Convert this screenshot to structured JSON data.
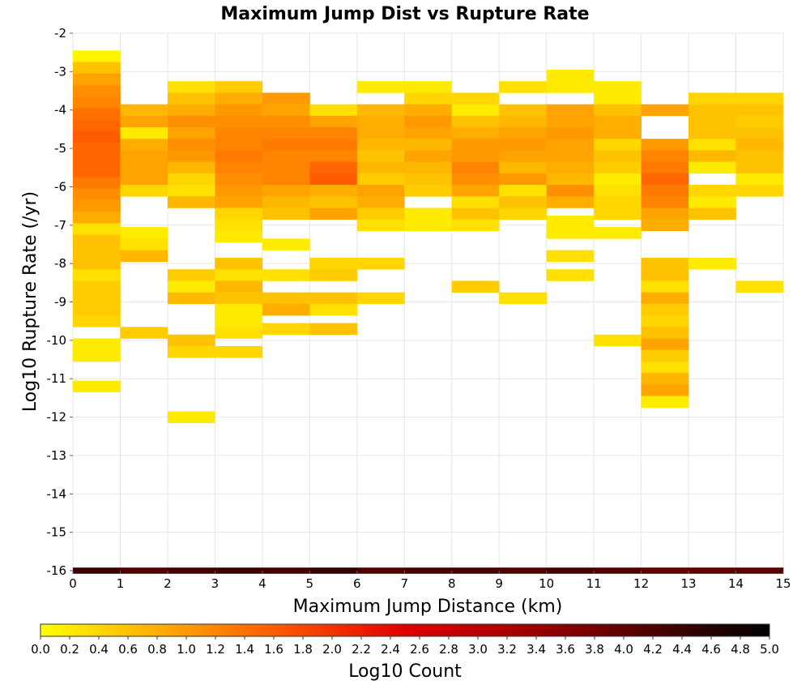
{
  "chart_data": {
    "type": "heatmap",
    "title": "Maximum Jump Dist vs Rupture Rate",
    "xlabel": "Maximum Jump Distance (km)",
    "ylabel": "Log10 Rupture Rate (/yr)",
    "colorbar_label": "Log10 Count",
    "xlim": [
      0,
      15
    ],
    "ylim": [
      -16,
      -2
    ],
    "x_ticks": [
      "0",
      "1",
      "2",
      "3",
      "4",
      "5",
      "6",
      "7",
      "8",
      "9",
      "10",
      "11",
      "12",
      "13",
      "14",
      "15"
    ],
    "y_ticks": [
      "-2",
      "-3",
      "-4",
      "-5",
      "-6",
      "-7",
      "-8",
      "-9",
      "-10",
      "-11",
      "-12",
      "-13",
      "-14",
      "-15",
      "-16"
    ],
    "colorbar_range": [
      0,
      5
    ],
    "colorbar_ticks": [
      "0.0",
      "0.2",
      "0.4",
      "0.6",
      "0.8",
      "1.0",
      "1.2",
      "1.4",
      "1.6",
      "1.8",
      "2.0",
      "2.2",
      "2.4",
      "2.6",
      "2.8",
      "3.0",
      "3.2",
      "3.4",
      "3.6",
      "3.8",
      "4.0",
      "4.2",
      "4.4",
      "4.6",
      "4.8",
      "5.0"
    ],
    "colorscale": [
      "#ffff00",
      "#ffaa00",
      "#ff5500",
      "#e00000",
      "#a00000",
      "#500000",
      "#000000"
    ],
    "grid": true,
    "bin_width_x": 1,
    "bin_height_y": 0.3,
    "cells": [
      {
        "x": 0,
        "y": -2.6,
        "v": 0.1
      },
      {
        "x": 0,
        "y": -2.9,
        "v": 0.6
      },
      {
        "x": 0,
        "y": -3.2,
        "v": 0.9
      },
      {
        "x": 0,
        "y": -3.5,
        "v": 1.1
      },
      {
        "x": 0,
        "y": -3.8,
        "v": 1.2
      },
      {
        "x": 0,
        "y": -4.1,
        "v": 1.4
      },
      {
        "x": 0,
        "y": -4.4,
        "v": 1.5
      },
      {
        "x": 0,
        "y": -4.7,
        "v": 1.6
      },
      {
        "x": 0,
        "y": -5.0,
        "v": 1.5
      },
      {
        "x": 0,
        "y": -5.3,
        "v": 1.5
      },
      {
        "x": 0,
        "y": -5.6,
        "v": 1.5
      },
      {
        "x": 0,
        "y": -5.9,
        "v": 1.3
      },
      {
        "x": 0,
        "y": -6.2,
        "v": 1.1
      },
      {
        "x": 0,
        "y": -6.5,
        "v": 1.0
      },
      {
        "x": 0,
        "y": -6.8,
        "v": 0.8
      },
      {
        "x": 0,
        "y": -7.1,
        "v": 0.3
      },
      {
        "x": 0,
        "y": -7.4,
        "v": 0.6
      },
      {
        "x": 0,
        "y": -7.7,
        "v": 0.6
      },
      {
        "x": 0,
        "y": -8.0,
        "v": 0.6
      },
      {
        "x": 0,
        "y": -8.3,
        "v": 0.3
      },
      {
        "x": 0,
        "y": -8.6,
        "v": 0.5
      },
      {
        "x": 0,
        "y": -8.9,
        "v": 0.5
      },
      {
        "x": 0,
        "y": -9.2,
        "v": 0.5
      },
      {
        "x": 0,
        "y": -9.5,
        "v": 0.4
      },
      {
        "x": 0,
        "y": -10.1,
        "v": 0.2
      },
      {
        "x": 0,
        "y": -10.4,
        "v": 0.2
      },
      {
        "x": 0,
        "y": -11.2,
        "v": 0.2
      },
      {
        "x": 1,
        "y": -4.0,
        "v": 0.7
      },
      {
        "x": 1,
        "y": -4.3,
        "v": 0.9
      },
      {
        "x": 1,
        "y": -4.6,
        "v": 0.2
      },
      {
        "x": 1,
        "y": -4.9,
        "v": 0.8
      },
      {
        "x": 1,
        "y": -5.2,
        "v": 0.9
      },
      {
        "x": 1,
        "y": -5.5,
        "v": 0.9
      },
      {
        "x": 1,
        "y": -5.8,
        "v": 0.9
      },
      {
        "x": 1,
        "y": -6.1,
        "v": 0.4
      },
      {
        "x": 1,
        "y": -7.2,
        "v": 0.2
      },
      {
        "x": 1,
        "y": -7.5,
        "v": 0.3
      },
      {
        "x": 1,
        "y": -7.8,
        "v": 0.7
      },
      {
        "x": 1,
        "y": -9.8,
        "v": 0.5
      },
      {
        "x": 2,
        "y": -3.4,
        "v": 0.3
      },
      {
        "x": 2,
        "y": -3.7,
        "v": 0.6
      },
      {
        "x": 2,
        "y": -4.0,
        "v": 0.8
      },
      {
        "x": 2,
        "y": -4.3,
        "v": 1.1
      },
      {
        "x": 2,
        "y": -4.6,
        "v": 0.9
      },
      {
        "x": 2,
        "y": -4.9,
        "v": 1.1
      },
      {
        "x": 2,
        "y": -5.2,
        "v": 1.0
      },
      {
        "x": 2,
        "y": -5.5,
        "v": 0.7
      },
      {
        "x": 2,
        "y": -5.8,
        "v": 0.4
      },
      {
        "x": 2,
        "y": -6.1,
        "v": 0.3
      },
      {
        "x": 2,
        "y": -6.4,
        "v": 0.7
      },
      {
        "x": 2,
        "y": -8.3,
        "v": 0.5
      },
      {
        "x": 2,
        "y": -8.6,
        "v": 0.2
      },
      {
        "x": 2,
        "y": -8.9,
        "v": 0.7
      },
      {
        "x": 2,
        "y": -10.0,
        "v": 0.6
      },
      {
        "x": 2,
        "y": -10.3,
        "v": 0.4
      },
      {
        "x": 2,
        "y": -12.0,
        "v": 0.2
      },
      {
        "x": 3,
        "y": -3.4,
        "v": 0.5
      },
      {
        "x": 3,
        "y": -3.7,
        "v": 0.8
      },
      {
        "x": 3,
        "y": -4.0,
        "v": 1.0
      },
      {
        "x": 3,
        "y": -4.3,
        "v": 1.1
      },
      {
        "x": 3,
        "y": -4.6,
        "v": 1.2
      },
      {
        "x": 3,
        "y": -4.9,
        "v": 1.2
      },
      {
        "x": 3,
        "y": -5.2,
        "v": 1.3
      },
      {
        "x": 3,
        "y": -5.5,
        "v": 1.2
      },
      {
        "x": 3,
        "y": -5.8,
        "v": 1.1
      },
      {
        "x": 3,
        "y": -6.1,
        "v": 1.0
      },
      {
        "x": 3,
        "y": -6.4,
        "v": 0.9
      },
      {
        "x": 3,
        "y": -6.7,
        "v": 0.4
      },
      {
        "x": 3,
        "y": -7.0,
        "v": 0.3
      },
      {
        "x": 3,
        "y": -7.3,
        "v": 0.2
      },
      {
        "x": 3,
        "y": -8.0,
        "v": 0.6
      },
      {
        "x": 3,
        "y": -8.3,
        "v": 0.3
      },
      {
        "x": 3,
        "y": -8.6,
        "v": 0.7
      },
      {
        "x": 3,
        "y": -8.9,
        "v": 0.6
      },
      {
        "x": 3,
        "y": -9.2,
        "v": 0.2
      },
      {
        "x": 3,
        "y": -9.5,
        "v": 0.2
      },
      {
        "x": 3,
        "y": -9.8,
        "v": 0.3
      },
      {
        "x": 3,
        "y": -10.3,
        "v": 0.4
      },
      {
        "x": 4,
        "y": -3.7,
        "v": 1.0
      },
      {
        "x": 4,
        "y": -4.0,
        "v": 0.9
      },
      {
        "x": 4,
        "y": -4.3,
        "v": 1.1
      },
      {
        "x": 4,
        "y": -4.6,
        "v": 1.2
      },
      {
        "x": 4,
        "y": -4.9,
        "v": 1.3
      },
      {
        "x": 4,
        "y": -5.2,
        "v": 1.2
      },
      {
        "x": 4,
        "y": -5.5,
        "v": 1.2
      },
      {
        "x": 4,
        "y": -5.8,
        "v": 1.2
      },
      {
        "x": 4,
        "y": -6.1,
        "v": 0.9
      },
      {
        "x": 4,
        "y": -6.4,
        "v": 0.7
      },
      {
        "x": 4,
        "y": -6.7,
        "v": 0.6
      },
      {
        "x": 4,
        "y": -7.5,
        "v": 0.2
      },
      {
        "x": 4,
        "y": -8.3,
        "v": 0.3
      },
      {
        "x": 4,
        "y": -8.9,
        "v": 0.6
      },
      {
        "x": 4,
        "y": -9.2,
        "v": 0.8
      },
      {
        "x": 4,
        "y": -9.7,
        "v": 0.4
      },
      {
        "x": 5,
        "y": -4.0,
        "v": 0.3
      },
      {
        "x": 5,
        "y": -4.3,
        "v": 0.9
      },
      {
        "x": 5,
        "y": -4.6,
        "v": 1.2
      },
      {
        "x": 5,
        "y": -4.9,
        "v": 1.3
      },
      {
        "x": 5,
        "y": -5.2,
        "v": 1.2
      },
      {
        "x": 5,
        "y": -5.5,
        "v": 1.5
      },
      {
        "x": 5,
        "y": -5.8,
        "v": 1.6
      },
      {
        "x": 5,
        "y": -6.1,
        "v": 0.8
      },
      {
        "x": 5,
        "y": -6.4,
        "v": 0.6
      },
      {
        "x": 5,
        "y": -6.7,
        "v": 0.9
      },
      {
        "x": 5,
        "y": -8.0,
        "v": 0.4
      },
      {
        "x": 5,
        "y": -8.3,
        "v": 0.5
      },
      {
        "x": 5,
        "y": -8.9,
        "v": 0.6
      },
      {
        "x": 5,
        "y": -9.2,
        "v": 0.3
      },
      {
        "x": 5,
        "y": -9.7,
        "v": 0.6
      },
      {
        "x": 6,
        "y": -3.4,
        "v": 0.2
      },
      {
        "x": 6,
        "y": -4.0,
        "v": 0.7
      },
      {
        "x": 6,
        "y": -4.3,
        "v": 0.8
      },
      {
        "x": 6,
        "y": -4.6,
        "v": 0.8
      },
      {
        "x": 6,
        "y": -4.9,
        "v": 0.7
      },
      {
        "x": 6,
        "y": -5.2,
        "v": 0.6
      },
      {
        "x": 6,
        "y": -5.5,
        "v": 0.7
      },
      {
        "x": 6,
        "y": -5.8,
        "v": 0.5
      },
      {
        "x": 6,
        "y": -6.1,
        "v": 0.9
      },
      {
        "x": 6,
        "y": -6.4,
        "v": 0.8
      },
      {
        "x": 6,
        "y": -6.7,
        "v": 0.5
      },
      {
        "x": 6,
        "y": -7.0,
        "v": 0.3
      },
      {
        "x": 6,
        "y": -8.0,
        "v": 0.4
      },
      {
        "x": 6,
        "y": -8.9,
        "v": 0.4
      },
      {
        "x": 7,
        "y": -3.4,
        "v": 0.2
      },
      {
        "x": 7,
        "y": -3.7,
        "v": 0.4
      },
      {
        "x": 7,
        "y": -4.0,
        "v": 0.8
      },
      {
        "x": 7,
        "y": -4.3,
        "v": 1.0
      },
      {
        "x": 7,
        "y": -4.6,
        "v": 0.9
      },
      {
        "x": 7,
        "y": -4.9,
        "v": 0.7
      },
      {
        "x": 7,
        "y": -5.2,
        "v": 0.9
      },
      {
        "x": 7,
        "y": -5.5,
        "v": 0.7
      },
      {
        "x": 7,
        "y": -5.8,
        "v": 0.6
      },
      {
        "x": 7,
        "y": -6.1,
        "v": 0.5
      },
      {
        "x": 7,
        "y": -6.7,
        "v": 0.2
      },
      {
        "x": 7,
        "y": -7.0,
        "v": 0.2
      },
      {
        "x": 8,
        "y": -3.7,
        "v": 0.4
      },
      {
        "x": 8,
        "y": -4.0,
        "v": 0.2
      },
      {
        "x": 8,
        "y": -4.3,
        "v": 0.6
      },
      {
        "x": 8,
        "y": -4.6,
        "v": 0.8
      },
      {
        "x": 8,
        "y": -4.9,
        "v": 1.0
      },
      {
        "x": 8,
        "y": -5.2,
        "v": 1.0
      },
      {
        "x": 8,
        "y": -5.5,
        "v": 1.2
      },
      {
        "x": 8,
        "y": -5.8,
        "v": 1.1
      },
      {
        "x": 8,
        "y": -6.1,
        "v": 0.9
      },
      {
        "x": 8,
        "y": -6.4,
        "v": 0.3
      },
      {
        "x": 8,
        "y": -6.7,
        "v": 0.6
      },
      {
        "x": 8,
        "y": -7.0,
        "v": 0.3
      },
      {
        "x": 8,
        "y": -8.6,
        "v": 0.5
      },
      {
        "x": 9,
        "y": -3.4,
        "v": 0.3
      },
      {
        "x": 9,
        "y": -4.0,
        "v": 0.6
      },
      {
        "x": 9,
        "y": -4.3,
        "v": 0.7
      },
      {
        "x": 9,
        "y": -4.6,
        "v": 0.9
      },
      {
        "x": 9,
        "y": -4.9,
        "v": 1.0
      },
      {
        "x": 9,
        "y": -5.2,
        "v": 0.9
      },
      {
        "x": 9,
        "y": -5.5,
        "v": 0.7
      },
      {
        "x": 9,
        "y": -5.8,
        "v": 1.0
      },
      {
        "x": 9,
        "y": -6.1,
        "v": 0.3
      },
      {
        "x": 9,
        "y": -6.4,
        "v": 0.6
      },
      {
        "x": 9,
        "y": -6.7,
        "v": 0.4
      },
      {
        "x": 9,
        "y": -8.9,
        "v": 0.3
      },
      {
        "x": 10,
        "y": -3.1,
        "v": 0.2
      },
      {
        "x": 10,
        "y": -3.4,
        "v": 0.2
      },
      {
        "x": 10,
        "y": -4.0,
        "v": 0.9
      },
      {
        "x": 10,
        "y": -4.3,
        "v": 0.9
      },
      {
        "x": 10,
        "y": -4.6,
        "v": 1.0
      },
      {
        "x": 10,
        "y": -4.9,
        "v": 0.9
      },
      {
        "x": 10,
        "y": -5.2,
        "v": 0.9
      },
      {
        "x": 10,
        "y": -5.5,
        "v": 0.8
      },
      {
        "x": 10,
        "y": -5.8,
        "v": 0.7
      },
      {
        "x": 10,
        "y": -6.1,
        "v": 1.1
      },
      {
        "x": 10,
        "y": -6.4,
        "v": 0.8
      },
      {
        "x": 10,
        "y": -6.9,
        "v": 0.2
      },
      {
        "x": 10,
        "y": -7.2,
        "v": 0.2
      },
      {
        "x": 10,
        "y": -7.8,
        "v": 0.3
      },
      {
        "x": 10,
        "y": -8.3,
        "v": 0.3
      },
      {
        "x": 11,
        "y": -3.4,
        "v": 0.2
      },
      {
        "x": 11,
        "y": -3.7,
        "v": 0.2
      },
      {
        "x": 11,
        "y": -4.0,
        "v": 0.6
      },
      {
        "x": 11,
        "y": -4.3,
        "v": 0.8
      },
      {
        "x": 11,
        "y": -4.6,
        "v": 0.8
      },
      {
        "x": 11,
        "y": -4.9,
        "v": 0.4
      },
      {
        "x": 11,
        "y": -5.2,
        "v": 0.6
      },
      {
        "x": 11,
        "y": -5.5,
        "v": 0.5
      },
      {
        "x": 11,
        "y": -5.8,
        "v": 0.2
      },
      {
        "x": 11,
        "y": -6.1,
        "v": 0.3
      },
      {
        "x": 11,
        "y": -6.4,
        "v": 0.4
      },
      {
        "x": 11,
        "y": -6.7,
        "v": 0.4
      },
      {
        "x": 11,
        "y": -7.2,
        "v": 0.2
      },
      {
        "x": 11,
        "y": -10.0,
        "v": 0.3
      },
      {
        "x": 12,
        "y": -4.0,
        "v": 0.9
      },
      {
        "x": 12,
        "y": -4.9,
        "v": 1.0
      },
      {
        "x": 12,
        "y": -5.2,
        "v": 1.2
      },
      {
        "x": 12,
        "y": -5.5,
        "v": 1.3
      },
      {
        "x": 12,
        "y": -5.8,
        "v": 1.5
      },
      {
        "x": 12,
        "y": -6.1,
        "v": 1.3
      },
      {
        "x": 12,
        "y": -6.4,
        "v": 1.2
      },
      {
        "x": 12,
        "y": -6.7,
        "v": 0.9
      },
      {
        "x": 12,
        "y": -7.0,
        "v": 0.8
      },
      {
        "x": 12,
        "y": -8.0,
        "v": 0.6
      },
      {
        "x": 12,
        "y": -8.3,
        "v": 0.6
      },
      {
        "x": 12,
        "y": -8.6,
        "v": 0.3
      },
      {
        "x": 12,
        "y": -8.9,
        "v": 0.8
      },
      {
        "x": 12,
        "y": -9.2,
        "v": 0.5
      },
      {
        "x": 12,
        "y": -9.5,
        "v": 0.4
      },
      {
        "x": 12,
        "y": -9.8,
        "v": 0.6
      },
      {
        "x": 12,
        "y": -10.1,
        "v": 0.9
      },
      {
        "x": 12,
        "y": -10.4,
        "v": 0.5
      },
      {
        "x": 12,
        "y": -10.7,
        "v": 0.3
      },
      {
        "x": 12,
        "y": -11.0,
        "v": 0.7
      },
      {
        "x": 12,
        "y": -11.3,
        "v": 0.9
      },
      {
        "x": 12,
        "y": -11.6,
        "v": 0.2
      },
      {
        "x": 13,
        "y": -3.7,
        "v": 0.4
      },
      {
        "x": 13,
        "y": -4.0,
        "v": 0.6
      },
      {
        "x": 13,
        "y": -4.3,
        "v": 0.6
      },
      {
        "x": 13,
        "y": -4.6,
        "v": 0.6
      },
      {
        "x": 13,
        "y": -4.9,
        "v": 0.3
      },
      {
        "x": 13,
        "y": -5.2,
        "v": 0.7
      },
      {
        "x": 13,
        "y": -5.5,
        "v": 0.2
      },
      {
        "x": 13,
        "y": -6.1,
        "v": 0.4
      },
      {
        "x": 13,
        "y": -6.4,
        "v": 0.2
      },
      {
        "x": 13,
        "y": -6.7,
        "v": 0.6
      },
      {
        "x": 13,
        "y": -8.0,
        "v": 0.2
      },
      {
        "x": 14,
        "y": -3.7,
        "v": 0.4
      },
      {
        "x": 14,
        "y": -4.0,
        "v": 0.6
      },
      {
        "x": 14,
        "y": -4.3,
        "v": 0.5
      },
      {
        "x": 14,
        "y": -4.6,
        "v": 0.6
      },
      {
        "x": 14,
        "y": -4.9,
        "v": 0.7
      },
      {
        "x": 14,
        "y": -5.2,
        "v": 0.6
      },
      {
        "x": 14,
        "y": -5.5,
        "v": 0.6
      },
      {
        "x": 14,
        "y": -5.8,
        "v": 0.2
      },
      {
        "x": 14,
        "y": -6.1,
        "v": 0.4
      },
      {
        "x": 14,
        "y": -8.6,
        "v": 0.3
      }
    ],
    "zero_rate_row": {
      "y": -16,
      "values": [
        4.4,
        4.2,
        4.3,
        4.4,
        4.3,
        4.5,
        4.2,
        4.3,
        4.3,
        4.2,
        4.3,
        4.2,
        4.0,
        4.0,
        4.1
      ]
    }
  }
}
